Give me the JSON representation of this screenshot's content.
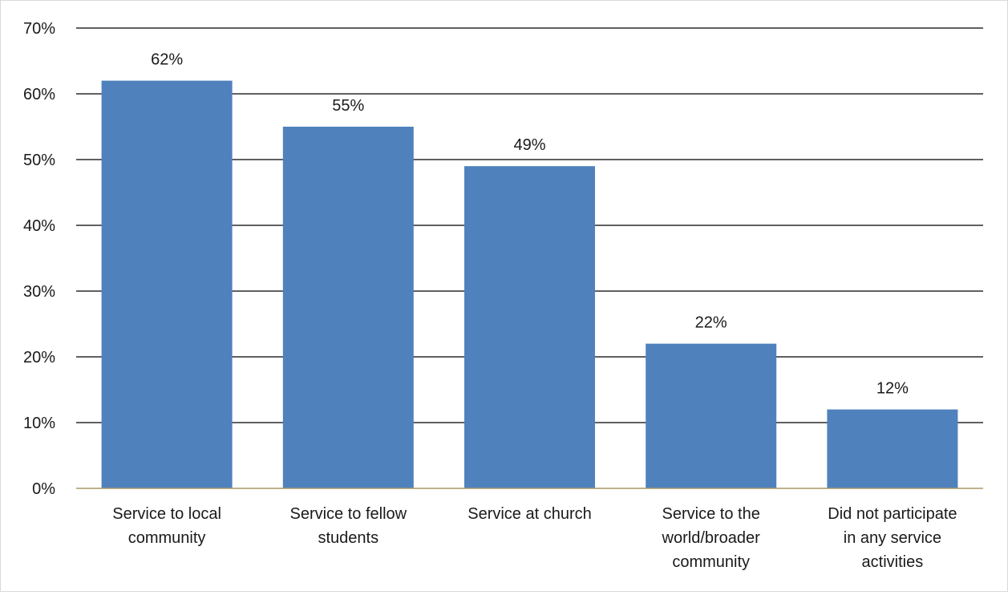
{
  "chart_data": {
    "type": "bar",
    "title": "",
    "xlabel": "",
    "ylabel": "",
    "categories": [
      [
        "Service to local",
        "community"
      ],
      [
        "Service to fellow",
        "students"
      ],
      [
        "Service at church"
      ],
      [
        "Service to the",
        "world/broader",
        "community"
      ],
      [
        "Did not participate",
        "in any service",
        "activities"
      ]
    ],
    "values": [
      62,
      55,
      49,
      22,
      12
    ],
    "value_labels": [
      "62%",
      "55%",
      "49%",
      "22%",
      "12%"
    ],
    "ylim": [
      0,
      70
    ],
    "y_ticks": [
      {
        "value": 0,
        "label": "0%"
      },
      {
        "value": 10,
        "label": "10%"
      },
      {
        "value": 20,
        "label": "20%"
      },
      {
        "value": 30,
        "label": "30%"
      },
      {
        "value": 40,
        "label": "40%"
      },
      {
        "value": 50,
        "label": "50%"
      },
      {
        "value": 60,
        "label": "60%"
      },
      {
        "value": 70,
        "label": "70%"
      }
    ],
    "grid": true,
    "legend": "none",
    "colors": {
      "bar": "#4f81bd",
      "gridline": "#000000",
      "baseline": "#a89866"
    }
  }
}
